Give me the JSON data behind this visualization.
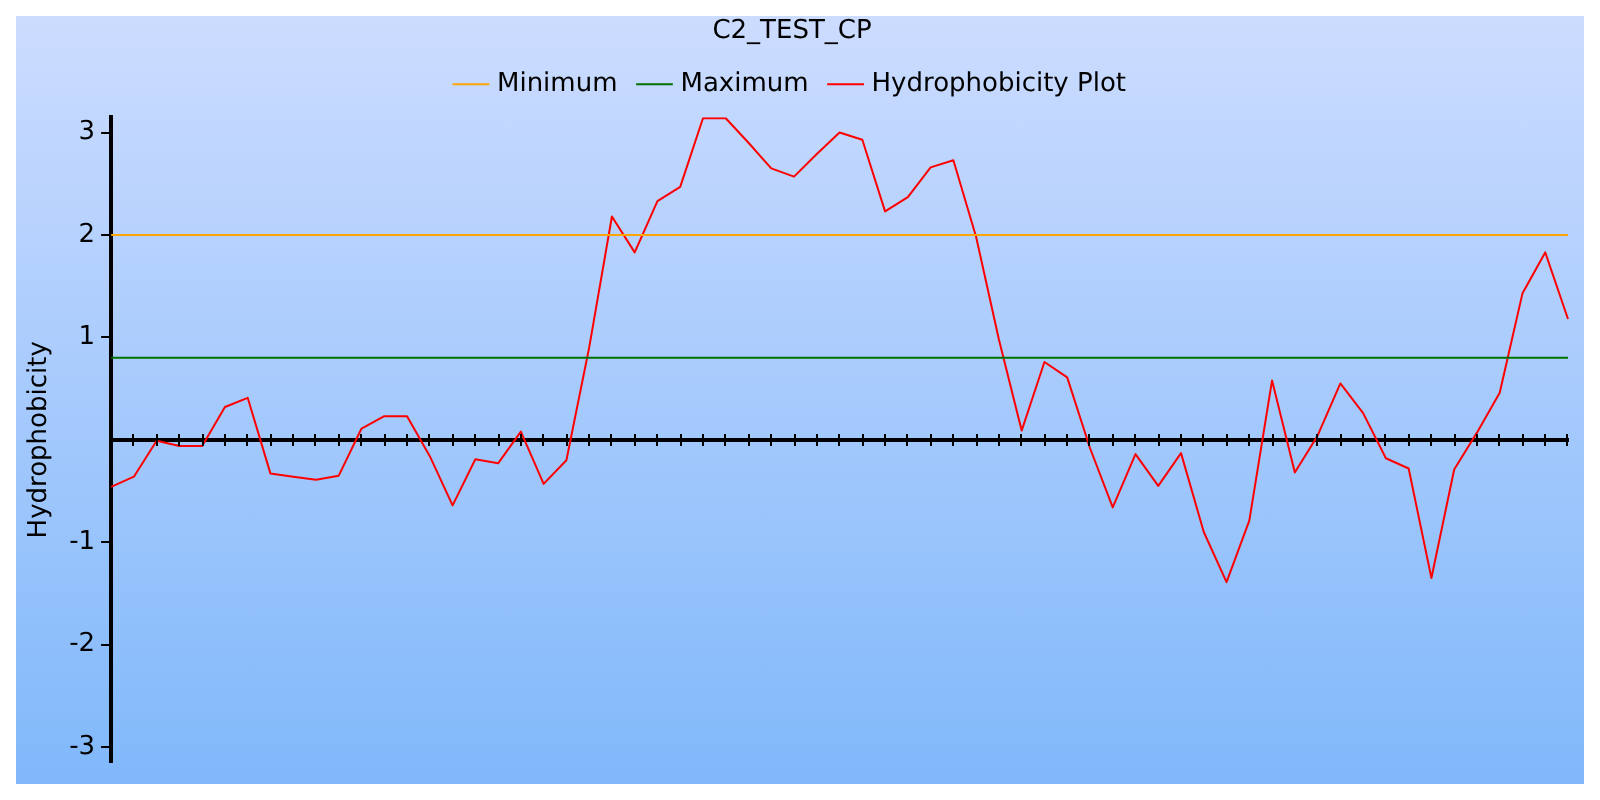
{
  "chart_data": {
    "type": "line",
    "title": "C2_TEST_CP",
    "ylabel": "Hydrophobicity",
    "categories": [
      null,
      null,
      null,
      null,
      null,
      null,
      null,
      null,
      null,
      null,
      null,
      null,
      null,
      null,
      null,
      null,
      null,
      null,
      null,
      null,
      null,
      null,
      null,
      null,
      null,
      null,
      null,
      null,
      null,
      null,
      null,
      null,
      null,
      null,
      null,
      null,
      null,
      null,
      null,
      null,
      null,
      null,
      null,
      null,
      null,
      null,
      null,
      null,
      null,
      null,
      null,
      null,
      null,
      null,
      null,
      null,
      null,
      null,
      null,
      null,
      null,
      null,
      null,
      null,
      null
    ],
    "series": [
      {
        "name": "Minimum",
        "color": "#ffa500",
        "values": [
          2,
          2,
          2,
          2,
          2,
          2,
          2,
          2,
          2,
          2,
          2,
          2,
          2,
          2,
          2,
          2,
          2,
          2,
          2,
          2,
          2,
          2,
          2,
          2,
          2,
          2,
          2,
          2,
          2,
          2,
          2,
          2,
          2,
          2,
          2,
          2,
          2,
          2,
          2,
          2,
          2,
          2,
          2,
          2,
          2,
          2,
          2,
          2,
          2,
          2,
          2,
          2,
          2,
          2,
          2,
          2,
          2,
          2,
          2,
          2,
          2,
          2,
          2,
          2,
          2
        ]
      },
      {
        "name": "Maximum",
        "color": "#007000",
        "values": [
          0.8,
          0.8,
          0.8,
          0.8,
          0.8,
          0.8,
          0.8,
          0.8,
          0.8,
          0.8,
          0.8,
          0.8,
          0.8,
          0.8,
          0.8,
          0.8,
          0.8,
          0.8,
          0.8,
          0.8,
          0.8,
          0.8,
          0.8,
          0.8,
          0.8,
          0.8,
          0.8,
          0.8,
          0.8,
          0.8,
          0.8,
          0.8,
          0.8,
          0.8,
          0.8,
          0.8,
          0.8,
          0.8,
          0.8,
          0.8,
          0.8,
          0.8,
          0.8,
          0.8,
          0.8,
          0.8,
          0.8,
          0.8,
          0.8,
          0.8,
          0.8,
          0.8,
          0.8,
          0.8,
          0.8,
          0.8,
          0.8,
          0.8,
          0.8,
          0.8,
          0.8,
          0.8,
          0.8,
          0.8,
          0.8
        ]
      },
      {
        "name": "Hydrophobicity Plot",
        "color": "#ff0000",
        "values": [
          -0.46,
          -0.36,
          -0.01,
          -0.06,
          -0.06,
          0.32,
          0.41,
          -0.33,
          -0.36,
          -0.39,
          -0.35,
          0.11,
          0.23,
          0.23,
          -0.16,
          -0.64,
          -0.19,
          -0.23,
          0.08,
          -0.43,
          -0.2,
          0.9,
          2.18,
          1.83,
          2.33,
          2.47,
          3.14,
          3.14,
          2.9,
          2.65,
          2.57,
          2.79,
          3.0,
          2.93,
          2.23,
          2.37,
          2.66,
          2.73,
          1.98,
          0.98,
          0.09,
          0.76,
          0.61,
          -0.08,
          -0.66,
          -0.14,
          -0.45,
          -0.13,
          -0.9,
          -1.39,
          -0.79,
          0.58,
          -0.32,
          0.04,
          0.55,
          0.26,
          -0.18,
          -0.28,
          -1.35,
          -0.29,
          0.07,
          0.46,
          1.43,
          1.83,
          1.18
        ]
      }
    ],
    "ylim": [
      -3.15,
      3.15
    ],
    "yticks": [
      -3,
      -2,
      -1,
      1,
      2,
      3
    ],
    "tick_labels": "y",
    "grid": false,
    "legend": "top",
    "marker": "none",
    "line_style": "solid"
  }
}
